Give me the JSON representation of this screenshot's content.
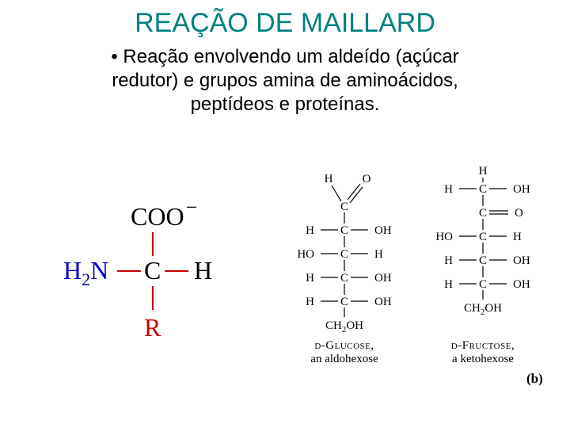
{
  "title": "REAÇÃO DE MAILLARD",
  "bullet": {
    "line1": "Reação envolvendo um aldeído (açúcar",
    "line2": "redutor) e grupos amina de aminoácidos,",
    "line3": "peptídeos e proteínas."
  },
  "amino": {
    "coo": "COO",
    "minus": "−",
    "h2n_h": "H",
    "h2n_sub": "2",
    "h2n_n": "N",
    "c": "C",
    "h": "H",
    "r": "R",
    "bond_color": "#cc0000",
    "h2n_color": "#0000cc",
    "r_color": "#cc0000"
  },
  "sugars": {
    "rowSpacing": 30,
    "stroke": "#000000",
    "glucose": {
      "top": {
        "type": "aldehyde"
      },
      "rows": [
        {
          "left": "H",
          "right": "OH"
        },
        {
          "left": "HO",
          "right": "H"
        },
        {
          "left": "H",
          "right": "OH"
        },
        {
          "left": "H",
          "right": "OH"
        }
      ],
      "bottom": "CH2OH",
      "caption_name": "d-Glucose,",
      "caption_desc": "an aldohexose"
    },
    "fructose": {
      "top": {
        "type": "h_row"
      },
      "rows": [
        {
          "center": "C",
          "dbl_right": "O"
        },
        {
          "left": "HO",
          "right": "H"
        },
        {
          "left": "H",
          "right": "OH"
        },
        {
          "left": "H",
          "right": "OH"
        }
      ],
      "bottom": "CH2OH",
      "caption_name": "d-Fructose,",
      "caption_desc": "a ketohexose"
    },
    "panel": "(b)"
  }
}
